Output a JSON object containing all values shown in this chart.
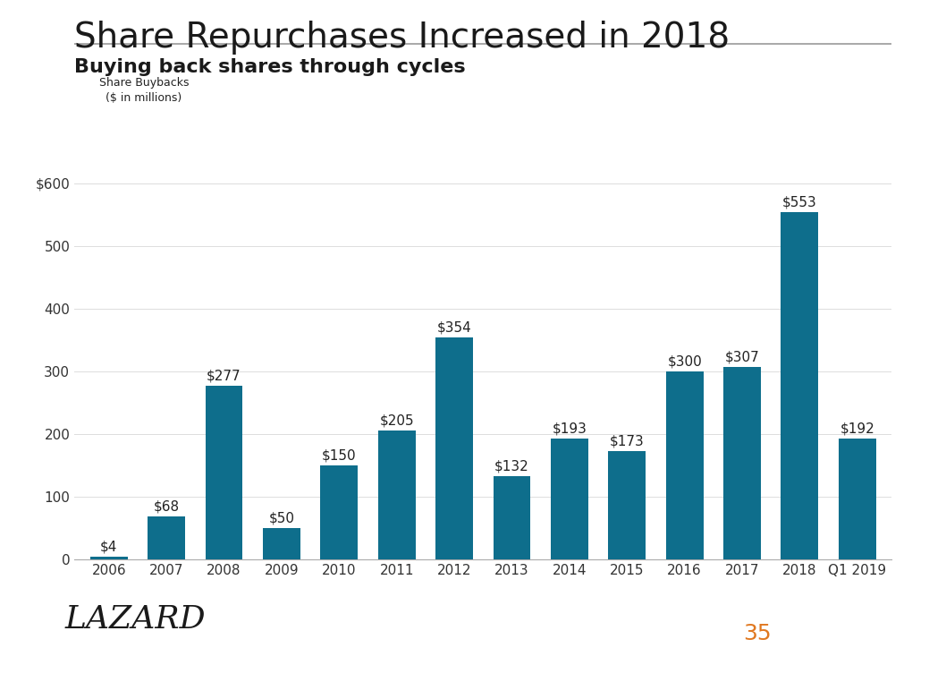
{
  "title": "Share Repurchases Increased in 2018",
  "subtitle": "Buying back shares through cycles",
  "legend_label": "Share Buybacks\n($ in millions)",
  "categories": [
    "2006",
    "2007",
    "2008",
    "2009",
    "2010",
    "2011",
    "2012",
    "2013",
    "2014",
    "2015",
    "2016",
    "2017",
    "2018",
    "Q1 2019"
  ],
  "values": [
    4,
    68,
    277,
    50,
    150,
    205,
    354,
    132,
    193,
    173,
    300,
    307,
    553,
    192
  ],
  "bar_color": "#0e6e8c",
  "bar_labels": [
    "$4",
    "$68",
    "$277",
    "$50",
    "$150",
    "$205",
    "$354",
    "$132",
    "$193",
    "$173",
    "$300",
    "$307",
    "$553",
    "$192"
  ],
  "ylim": [
    0,
    620
  ],
  "yticks": [
    0,
    100,
    200,
    300,
    400,
    500,
    600
  ],
  "ytick_labels": [
    "0",
    "100",
    "200",
    "300",
    "400",
    "500",
    "$600"
  ],
  "background_color": "#ffffff",
  "title_fontsize": 28,
  "subtitle_fontsize": 16,
  "page_number": "35",
  "page_number_color": "#e07820",
  "square_colors": [
    "#c0c0c0",
    "#c0c0c0",
    "#7b3f7b"
  ],
  "lazard_color": "#1a1a1a",
  "label_fontsize": 11,
  "tick_fontsize": 11
}
